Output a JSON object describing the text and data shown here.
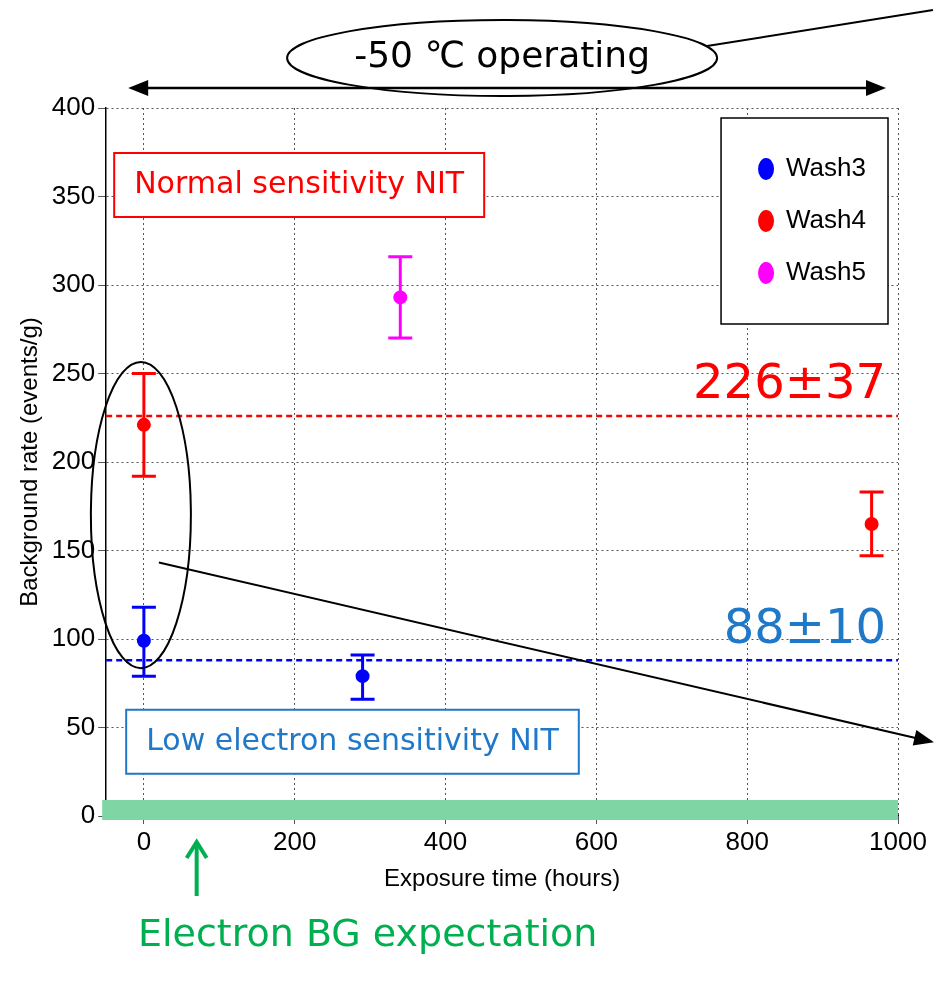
{
  "chart_data": {
    "type": "scatter",
    "xlabel": "Exposure time (hours)",
    "ylabel": "Background rate (events/g)",
    "xlim": [
      -50,
      1000
    ],
    "xticks": [
      0,
      200,
      400,
      600,
      800,
      1000
    ],
    "ylim": [
      0,
      400
    ],
    "yticks": [
      0,
      50,
      100,
      150,
      200,
      250,
      300,
      350,
      400
    ],
    "grid": true,
    "legend": "top right",
    "marker": "circle",
    "series": [
      {
        "name": "Wash3",
        "color": "#0000ff",
        "x": [
          0,
          290
        ],
        "values": [
          99,
          79
        ],
        "errors": [
          [
            79,
            118
          ],
          [
            66,
            91
          ]
        ]
      },
      {
        "name": "Wash4",
        "color": "#ff0000",
        "x": [
          0,
          965
        ],
        "values": [
          221,
          165
        ],
        "errors": [
          [
            192,
            250
          ],
          [
            147,
            183
          ]
        ]
      },
      {
        "name": "Wash5",
        "color": "#ff00ff",
        "x": [
          340
        ],
        "values": [
          293
        ],
        "errors": [
          [
            270,
            316
          ]
        ]
      }
    ],
    "ref_lines": [
      {
        "axis": "y",
        "value": 226,
        "label": "226±37",
        "color": "#ff0000",
        "line_style": "dashed"
      },
      {
        "axis": "y",
        "value": 88,
        "label": "88±10",
        "color": "#0000ff",
        "line_style": "dashed"
      }
    ],
    "bands": [
      {
        "axis": "y",
        "from": 0,
        "to": 9,
        "label": "Electron BG expectation",
        "color": "#7fd6a4"
      }
    ],
    "annotations": [
      "-50 ℃ operating",
      "Normal sensitivity NIT",
      "Low electron sensitivity NIT"
    ]
  }
}
